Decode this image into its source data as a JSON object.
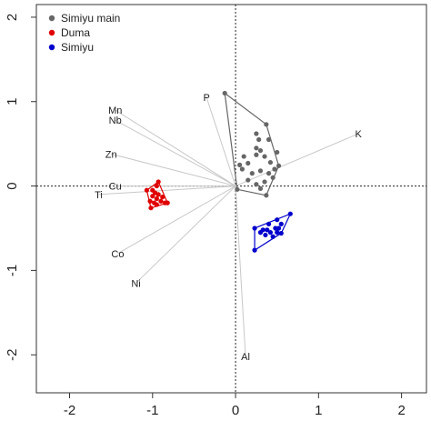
{
  "chart_data": {
    "type": "scatter",
    "subtype": "pca-biplot",
    "xlim": [
      -2.4,
      2.3
    ],
    "ylim": [
      -2.45,
      2.15
    ],
    "x_ticks": [
      -2,
      -1,
      0,
      1,
      2
    ],
    "y_ticks": [
      -2,
      -1,
      0,
      1,
      2
    ],
    "x_tick_labels": [
      "-2",
      "-1",
      "0",
      "1",
      "2"
    ],
    "y_tick_labels": [
      "-2",
      "-1",
      "0",
      "1",
      "2"
    ],
    "grid": false,
    "zero_lines": "dotted",
    "legend_position": "top-left",
    "legend": [
      {
        "label": "Simiyu main",
        "color": "#666666"
      },
      {
        "label": "Duma",
        "color": "#e00000"
      },
      {
        "label": "Simiyu",
        "color": "#0000cc"
      }
    ],
    "groups": [
      {
        "name": "Simiyu main",
        "color": "#666666",
        "hull": [
          [
            -0.13,
            1.1
          ],
          [
            0.37,
            0.73
          ],
          [
            0.52,
            0.24
          ],
          [
            0.37,
            -0.11
          ],
          [
            0.02,
            -0.04
          ]
        ],
        "points": [
          [
            -0.13,
            1.1
          ],
          [
            0.25,
            0.62
          ],
          [
            0.28,
            0.55
          ],
          [
            0.37,
            0.73
          ],
          [
            0.25,
            0.45
          ],
          [
            0.3,
            0.42
          ],
          [
            0.25,
            0.37
          ],
          [
            0.35,
            0.35
          ],
          [
            0.4,
            0.55
          ],
          [
            0.5,
            0.4
          ],
          [
            0.52,
            0.24
          ],
          [
            0.1,
            0.35
          ],
          [
            0.15,
            0.27
          ],
          [
            0.05,
            0.25
          ],
          [
            0.08,
            0.2
          ],
          [
            0.2,
            0.15
          ],
          [
            0.3,
            0.18
          ],
          [
            0.4,
            0.15
          ],
          [
            0.45,
            0.1
          ],
          [
            0.35,
            0.05
          ],
          [
            0.25,
            0.02
          ],
          [
            0.3,
            -0.03
          ],
          [
            0.37,
            -0.11
          ],
          [
            0.02,
            -0.04
          ],
          [
            0.15,
            0.07
          ],
          [
            0.47,
            0.2
          ],
          [
            0.42,
            0.28
          ]
        ]
      },
      {
        "name": "Duma",
        "color": "#e00000",
        "hull": [
          [
            -0.93,
            0.05
          ],
          [
            -0.82,
            -0.2
          ],
          [
            -1.02,
            -0.26
          ],
          [
            -1.07,
            -0.05
          ]
        ],
        "points": [
          [
            -0.93,
            0.05
          ],
          [
            -0.95,
            0.0
          ],
          [
            -1.0,
            -0.05
          ],
          [
            -1.07,
            -0.05
          ],
          [
            -0.97,
            -0.08
          ],
          [
            -0.93,
            -0.1
          ],
          [
            -1.0,
            -0.12
          ],
          [
            -0.95,
            -0.15
          ],
          [
            -1.03,
            -0.18
          ],
          [
            -0.9,
            -0.18
          ],
          [
            -0.85,
            -0.2
          ],
          [
            -0.82,
            -0.2
          ],
          [
            -0.95,
            -0.22
          ],
          [
            -1.02,
            -0.26
          ],
          [
            -0.88,
            -0.13
          ],
          [
            -0.98,
            -0.2
          ]
        ]
      },
      {
        "name": "Simiyu",
        "color": "#0000cc",
        "hull": [
          [
            0.23,
            -0.5
          ],
          [
            0.66,
            -0.33
          ],
          [
            0.55,
            -0.56
          ],
          [
            0.23,
            -0.76
          ]
        ],
        "points": [
          [
            0.23,
            -0.5
          ],
          [
            0.23,
            -0.76
          ],
          [
            0.66,
            -0.33
          ],
          [
            0.5,
            -0.4
          ],
          [
            0.55,
            -0.45
          ],
          [
            0.4,
            -0.45
          ],
          [
            0.33,
            -0.52
          ],
          [
            0.36,
            -0.58
          ],
          [
            0.42,
            -0.55
          ],
          [
            0.48,
            -0.5
          ],
          [
            0.5,
            -0.55
          ],
          [
            0.55,
            -0.56
          ],
          [
            0.45,
            -0.6
          ],
          [
            0.38,
            -0.52
          ],
          [
            0.3,
            -0.55
          ],
          [
            0.52,
            -0.5
          ]
        ]
      }
    ],
    "loadings": [
      {
        "label": "K",
        "x": 1.48,
        "y": 0.62
      },
      {
        "label": "P",
        "x": -0.35,
        "y": 1.05
      },
      {
        "label": "Mn",
        "x": -1.45,
        "y": 0.9
      },
      {
        "label": "Nb",
        "x": -1.45,
        "y": 0.78
      },
      {
        "label": "Zn",
        "x": -1.5,
        "y": 0.38
      },
      {
        "label": "Cu",
        "x": -1.45,
        "y": 0.0
      },
      {
        "label": "Ti",
        "x": -1.65,
        "y": -0.1
      },
      {
        "label": "Co",
        "x": -1.42,
        "y": -0.8
      },
      {
        "label": "Ni",
        "x": -1.2,
        "y": -1.15
      },
      {
        "label": "Al",
        "x": 0.12,
        "y": -2.02
      }
    ]
  }
}
